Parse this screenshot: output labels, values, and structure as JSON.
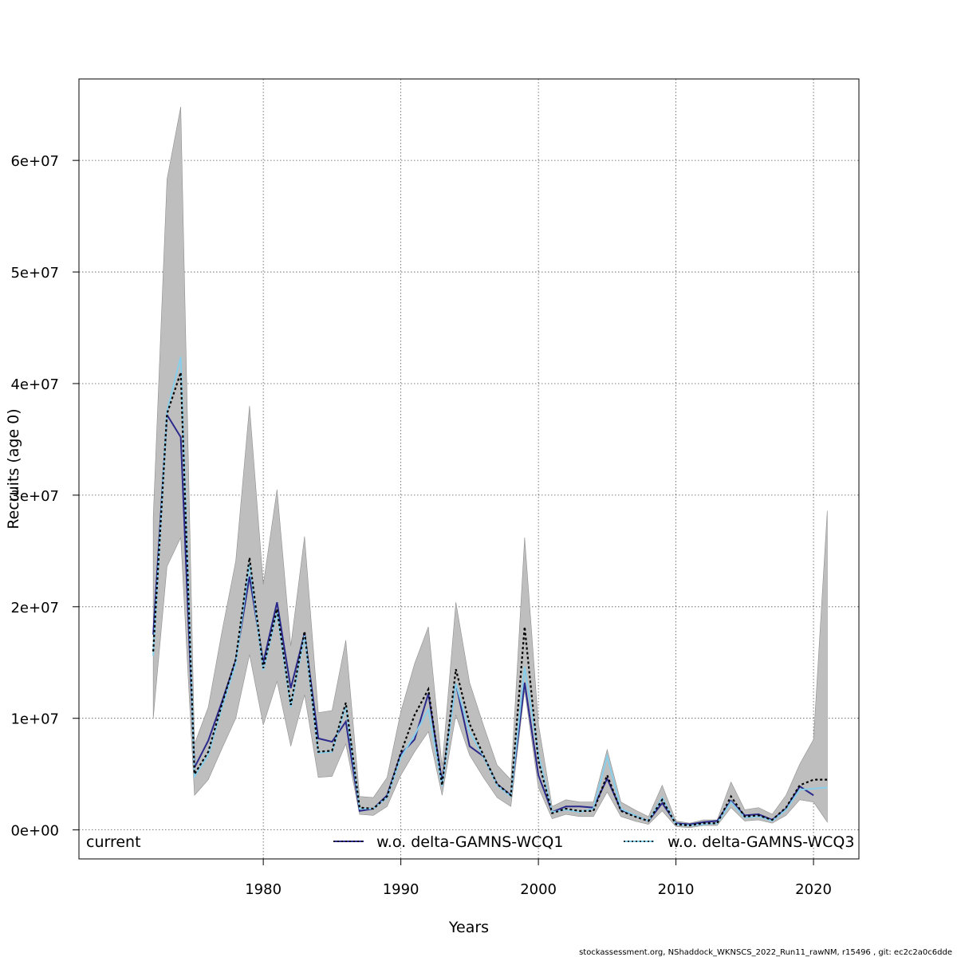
{
  "chart_data": {
    "type": "line",
    "xlabel": "Years",
    "ylabel": "Recruits (age 0)",
    "xlim": [
      1966.6,
      2023.3
    ],
    "ylim": [
      -2600000,
      67300000
    ],
    "x_ticks": [
      1980,
      1990,
      2000,
      2010,
      2020
    ],
    "x_tick_labels": [
      "1980",
      "1990",
      "2000",
      "2010",
      "2020"
    ],
    "y_ticks": [
      0,
      10000000,
      20000000,
      30000000,
      40000000,
      50000000,
      60000000
    ],
    "y_tick_labels": [
      "0e+00",
      "1e+07",
      "2e+07",
      "3e+07",
      "4e+07",
      "5e+07",
      "6e+07"
    ],
    "grid": true,
    "legend_position": "bottom",
    "band_color": "#bebebe",
    "years": [
      1972,
      1973,
      1974,
      1975,
      1976,
      1977,
      1978,
      1979,
      1980,
      1981,
      1982,
      1983,
      1984,
      1985,
      1986,
      1987,
      1988,
      1989,
      1990,
      1991,
      1992,
      1993,
      1994,
      1995,
      1996,
      1997,
      1998,
      1999,
      2000,
      2001,
      2002,
      2003,
      2004,
      2005,
      2006,
      2007,
      2008,
      2009,
      2010,
      2011,
      2012,
      2013,
      2014,
      2015,
      2016,
      2017,
      2018,
      2019,
      2020,
      2021
    ],
    "band_upper": [
      28000000,
      58300000,
      64800000,
      7700000,
      11000000,
      17800000,
      24100000,
      38000000,
      22000000,
      30500000,
      16500000,
      26300000,
      10500000,
      10700000,
      17000000,
      3000000,
      2900000,
      4700000,
      10600000,
      14900000,
      18200000,
      5700000,
      20400000,
      13200000,
      9400000,
      5800000,
      4500000,
      26200000,
      9500000,
      2100000,
      2700000,
      2500000,
      2500000,
      7200000,
      2500000,
      1800000,
      1200000,
      4000000,
      800000,
      600000,
      900000,
      900000,
      4300000,
      1800000,
      2000000,
      1400000,
      3100000,
      5900000,
      8100000,
      28600000
    ],
    "band_lower": [
      10000000,
      23600000,
      26200000,
      3100000,
      4500000,
      7300000,
      10000000,
      15700000,
      9400000,
      13300000,
      7500000,
      12100000,
      4700000,
      4800000,
      7700000,
      1400000,
      1300000,
      2100000,
      4900000,
      7000000,
      8800000,
      3100000,
      10300000,
      6700000,
      4700000,
      2900000,
      2100000,
      12500000,
      3800000,
      1000000,
      1400000,
      1200000,
      1200000,
      3400000,
      1200000,
      800000,
      500000,
      1700000,
      300000,
      200000,
      400000,
      400000,
      2000000,
      800000,
      900000,
      600000,
      1300000,
      2700000,
      2500000,
      700000
    ],
    "series": [
      {
        "name": "current",
        "color": "#000000",
        "style": "dashed",
        "values": [
          16000000,
          37300000,
          41000000,
          5000000,
          7000000,
          11300000,
          15300000,
          24400000,
          14500000,
          19800000,
          11200000,
          17800000,
          7000000,
          7100000,
          11400000,
          2000000,
          1900000,
          3000000,
          6900000,
          10300000,
          12600000,
          4000000,
          14400000,
          9500000,
          6700000,
          4100000,
          3100000,
          18200000,
          6200000,
          1500000,
          1900000,
          1700000,
          1700000,
          4900000,
          1700000,
          1200000,
          800000,
          2700000,
          500000,
          400000,
          600000,
          600000,
          3000000,
          1200000,
          1300000,
          900000,
          2000000,
          4000000,
          4500000,
          4500000
        ]
      },
      {
        "name": "w.o. delta-GAMNS-WCQ1",
        "color": "#2b2a8c",
        "style": "solid",
        "values": [
          17500000,
          37200000,
          35200000,
          5600000,
          8000000,
          11500000,
          15200000,
          22700000,
          15000000,
          20400000,
          12700000,
          17600000,
          8200000,
          7900000,
          9700000,
          1700000,
          1900000,
          3100000,
          6800000,
          8100000,
          12200000,
          4300000,
          13100000,
          7500000,
          6600000,
          4100000,
          3100000,
          13200000,
          4900000,
          1600000,
          2100000,
          2100000,
          2000000,
          4600000,
          1800000,
          1300000,
          800000,
          2400000,
          600000,
          500000,
          700000,
          800000,
          2600000,
          1300000,
          1400000,
          900000,
          1900000,
          3900000,
          3100000,
          null
        ]
      },
      {
        "name": "w.o. delta-GAMNS-WCQ3",
        "color": "#87ceeb",
        "style": "solid",
        "values": [
          15600000,
          37500000,
          42400000,
          4800000,
          6700000,
          11000000,
          14900000,
          23900000,
          14300000,
          19500000,
          11000000,
          17400000,
          6900000,
          7000000,
          11100000,
          1900000,
          1900000,
          2900000,
          6500000,
          8500000,
          10800000,
          3900000,
          13100000,
          8800000,
          6600000,
          4000000,
          3000000,
          14600000,
          6800000,
          1600000,
          1800000,
          1600000,
          1900000,
          6600000,
          1900000,
          1300000,
          800000,
          2900000,
          500000,
          400000,
          500000,
          600000,
          2500000,
          1100000,
          1200000,
          800000,
          1800000,
          3600000,
          3700000,
          3800000
        ]
      }
    ],
    "legend": [
      {
        "label": "current",
        "color": "#000000",
        "style": "none"
      },
      {
        "label": "w.o. delta-GAMNS-WCQ1",
        "color": "#2b2a8c",
        "style": "solid"
      },
      {
        "label": "w.o. delta-GAMNS-WCQ3",
        "color": "#87ceeb",
        "style": "solid"
      }
    ]
  },
  "footer_text": "stockassessment.org, NShaddock_WKNSCS_2022_Run11_rawNM, r15496 , git: ec2c2a0c6dde"
}
